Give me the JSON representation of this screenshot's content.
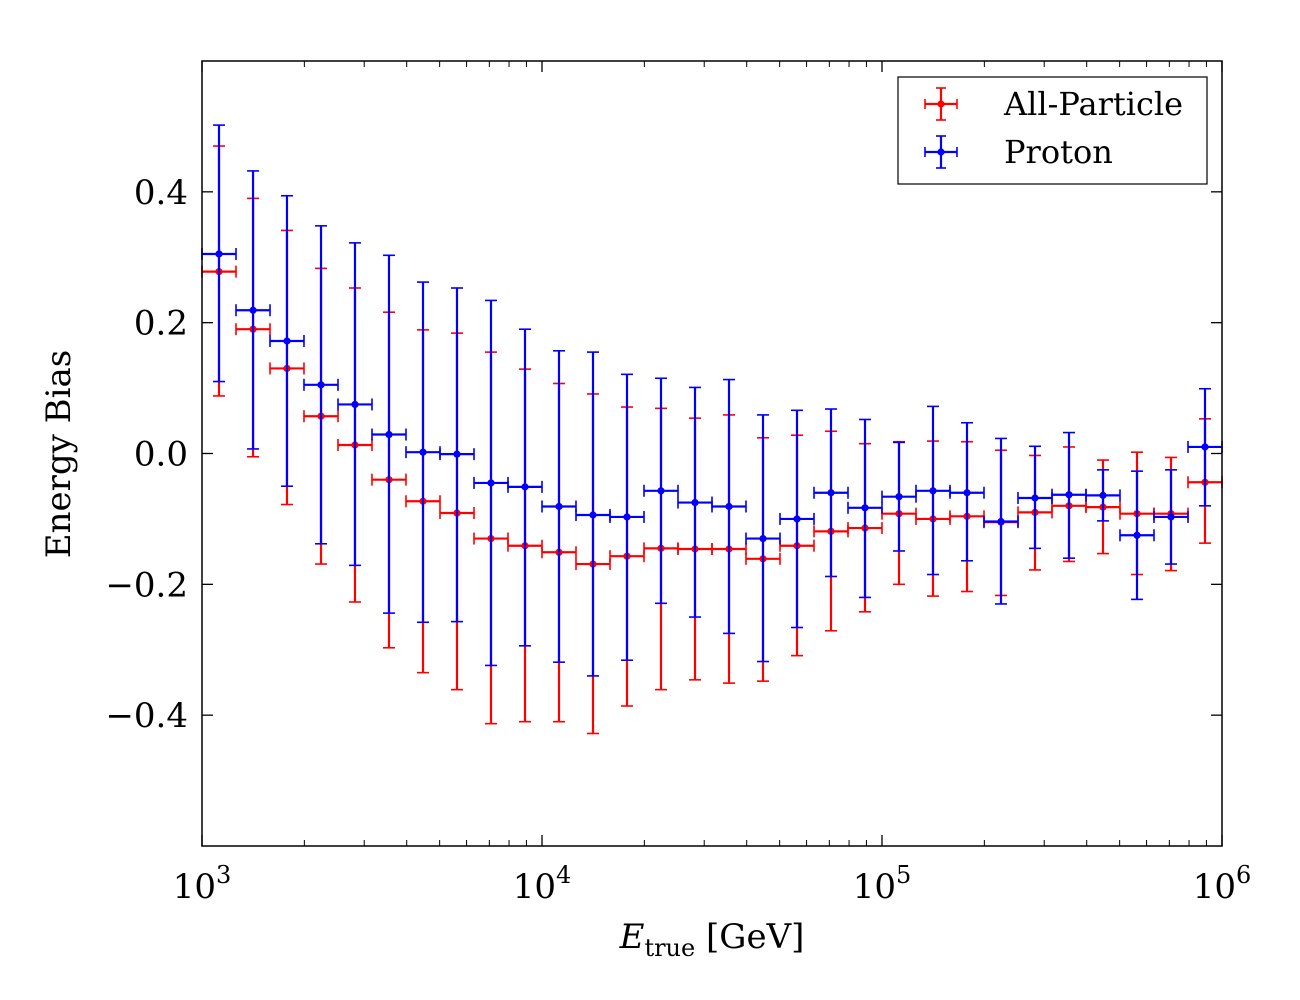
{
  "chart_data": {
    "type": "errorbar",
    "xscale": "log",
    "xlim": [
      1000,
      1000000
    ],
    "ylim": [
      -0.6,
      0.6
    ],
    "xlabel": {
      "symbol": "E",
      "subscript": "true",
      "unit": " [GeV]"
    },
    "ylabel": "Energy Bias",
    "legend_position": "top-right",
    "yticks": [
      -0.4,
      -0.2,
      0.0,
      0.2,
      0.4
    ],
    "ytick_labels": [
      "−0.4",
      "−0.2",
      "0.0",
      "0.2",
      "0.4"
    ],
    "xticks": [
      1000,
      10000,
      100000,
      1000000
    ],
    "xtick_labels": [
      {
        "base": "10",
        "exp": "3"
      },
      {
        "base": "10",
        "exp": "4"
      },
      {
        "base": "10",
        "exp": "5"
      },
      {
        "base": "10",
        "exp": "6"
      }
    ],
    "series": [
      {
        "name": "All-Particle",
        "color": "#ff0000",
        "x": [
          1122,
          1413,
          1778,
          2239,
          2818,
          3548,
          4467,
          5623,
          7079,
          8913,
          11220,
          14125,
          17783,
          22387,
          28184,
          35481,
          44668,
          56234,
          70795,
          89125,
          112202,
          141254,
          177828,
          223872,
          281838,
          354813,
          446684,
          562341,
          707946,
          891251
        ],
        "x_low": [
          1000,
          1259,
          1585,
          1995,
          2512,
          3162,
          3981,
          5012,
          6310,
          7943,
          10000,
          12589,
          15849,
          19953,
          25119,
          31623,
          39811,
          50119,
          63096,
          79433,
          100000,
          125893,
          158489,
          199526,
          251189,
          316228,
          398107,
          501187,
          630957,
          794328
        ],
        "x_high": [
          1259,
          1585,
          1995,
          2512,
          3162,
          3981,
          5012,
          6310,
          7943,
          10000,
          12589,
          15849,
          19953,
          25119,
          31623,
          39811,
          50119,
          63096,
          79433,
          100000,
          125893,
          158489,
          199526,
          251189,
          316228,
          398107,
          501187,
          630957,
          794328,
          1000000
        ],
        "y": [
          0.278,
          0.19,
          0.13,
          0.057,
          0.013,
          -0.04,
          -0.073,
          -0.091,
          -0.13,
          -0.141,
          -0.151,
          -0.169,
          -0.157,
          -0.145,
          -0.146,
          -0.146,
          -0.161,
          -0.141,
          -0.119,
          -0.114,
          -0.092,
          -0.1,
          -0.096,
          -0.105,
          -0.09,
          -0.08,
          -0.082,
          -0.092,
          -0.092,
          -0.044
        ],
        "y_err_low": [
          0.19,
          0.195,
          0.208,
          0.226,
          0.24,
          0.257,
          0.262,
          0.27,
          0.283,
          0.269,
          0.259,
          0.259,
          0.229,
          0.216,
          0.2,
          0.205,
          0.187,
          0.168,
          0.152,
          0.128,
          0.108,
          0.118,
          0.115,
          0.112,
          0.088,
          0.085,
          0.071,
          0.093,
          0.087,
          0.093
        ],
        "y_err_high": [
          0.192,
          0.2,
          0.211,
          0.226,
          0.24,
          0.256,
          0.262,
          0.275,
          0.285,
          0.27,
          0.258,
          0.26,
          0.228,
          0.214,
          0.2,
          0.205,
          0.185,
          0.169,
          0.153,
          0.129,
          0.11,
          0.119,
          0.114,
          0.11,
          0.087,
          0.09,
          0.072,
          0.094,
          0.086,
          0.097
        ]
      },
      {
        "name": "Proton",
        "color": "#0000ff",
        "x": [
          1122,
          1413,
          1778,
          2239,
          2818,
          3548,
          4467,
          5623,
          7079,
          8913,
          11220,
          14125,
          17783,
          22387,
          28184,
          35481,
          44668,
          56234,
          70795,
          89125,
          112202,
          141254,
          177828,
          223872,
          281838,
          354813,
          446684,
          562341,
          707946,
          891251
        ],
        "x_low": [
          1000,
          1259,
          1585,
          1995,
          2512,
          3162,
          3981,
          5012,
          6310,
          7943,
          10000,
          12589,
          15849,
          19953,
          25119,
          31623,
          39811,
          50119,
          63096,
          79433,
          100000,
          125893,
          158489,
          199526,
          251189,
          316228,
          398107,
          501187,
          630957,
          794328
        ],
        "x_high": [
          1259,
          1585,
          1995,
          2512,
          3162,
          3981,
          5012,
          6310,
          7943,
          10000,
          12589,
          15849,
          19953,
          25119,
          31623,
          39811,
          50119,
          63096,
          79433,
          100000,
          125893,
          158489,
          199526,
          251189,
          316228,
          398107,
          501187,
          630957,
          794328,
          1000000
        ],
        "y": [
          0.305,
          0.219,
          0.172,
          0.105,
          0.075,
          0.029,
          0.002,
          -0.001,
          -0.045,
          -0.051,
          -0.081,
          -0.094,
          -0.097,
          -0.057,
          -0.075,
          -0.081,
          -0.13,
          -0.1,
          -0.06,
          -0.083,
          -0.066,
          -0.057,
          -0.06,
          -0.104,
          -0.068,
          -0.063,
          -0.064,
          -0.125,
          -0.097,
          0.01
        ],
        "y_err_low": [
          0.195,
          0.212,
          0.222,
          0.243,
          0.246,
          0.273,
          0.26,
          0.256,
          0.279,
          0.243,
          0.238,
          0.246,
          0.219,
          0.172,
          0.175,
          0.194,
          0.188,
          0.166,
          0.128,
          0.137,
          0.083,
          0.128,
          0.104,
          0.126,
          0.077,
          0.097,
          0.039,
          0.098,
          0.072,
          0.09
        ],
        "y_err_high": [
          0.197,
          0.213,
          0.222,
          0.243,
          0.247,
          0.274,
          0.26,
          0.254,
          0.279,
          0.241,
          0.238,
          0.249,
          0.218,
          0.172,
          0.176,
          0.194,
          0.189,
          0.166,
          0.128,
          0.135,
          0.083,
          0.129,
          0.107,
          0.127,
          0.079,
          0.095,
          0.039,
          0.098,
          0.072,
          0.089
        ]
      }
    ]
  }
}
